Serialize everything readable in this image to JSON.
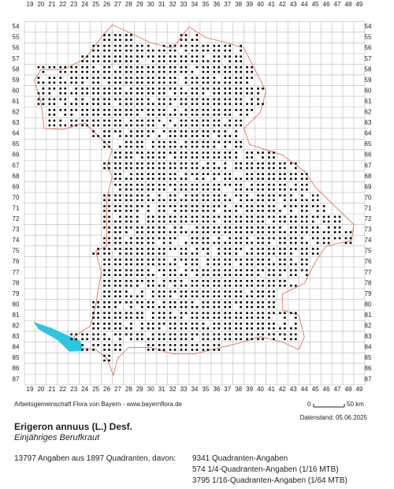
{
  "map": {
    "column_labels": [
      19,
      20,
      21,
      22,
      23,
      24,
      25,
      26,
      27,
      28,
      29,
      30,
      31,
      32,
      33,
      34,
      35,
      36,
      37,
      38,
      39,
      40,
      41,
      42,
      43,
      44,
      45,
      46,
      47,
      48,
      49
    ],
    "row_labels": [
      54,
      55,
      56,
      57,
      58,
      59,
      60,
      61,
      62,
      63,
      64,
      65,
      66,
      67,
      68,
      69,
      70,
      71,
      72,
      73,
      74,
      75,
      76,
      77,
      78,
      79,
      80,
      81,
      82,
      83,
      84,
      85,
      86,
      87
    ],
    "credit": "Arbeitsgemeinschaft Flora von Bayern - www.bayernflora.de",
    "scale": {
      "start": "0",
      "end": "50 km"
    },
    "date": "Datenstand: 05.06.2025",
    "title": "Erigeron annuus (L.) Desf.",
    "subtitle": "Einjähriges Berufkraut",
    "stats": {
      "summary": "13797 Angaben aus 1897 Quadranten, davon:",
      "lines": [
        "9341 Quadranten-Angaben",
        "574 1/4-Quadranten-Angaben (1/16 MTB)",
        "3795 1/16-Quadranten-Angaben (1/64 MTB)"
      ]
    }
  }
}
